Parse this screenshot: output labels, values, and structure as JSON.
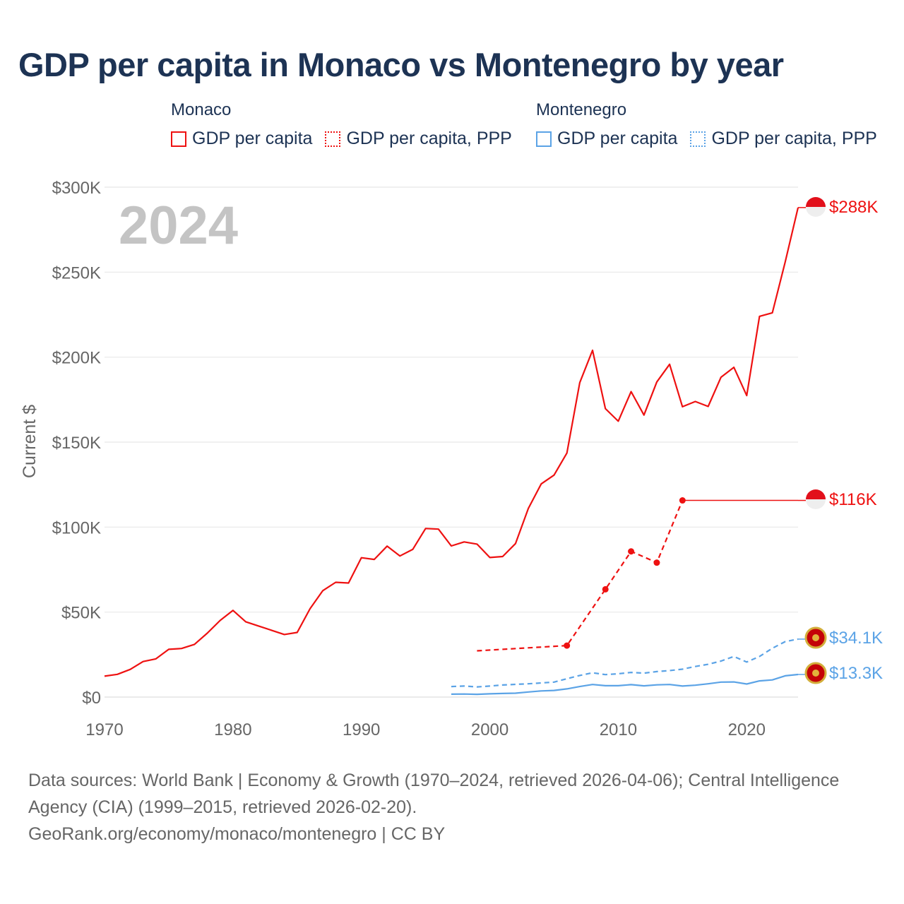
{
  "title": "GDP per capita in Monaco vs Montenegro by year",
  "legend": {
    "groups": [
      {
        "country": "Monaco",
        "color": "#ee1111",
        "items": [
          {
            "label": "GDP per capita",
            "style": "solid"
          },
          {
            "label": "GDP per capita, PPP",
            "style": "dotted"
          }
        ]
      },
      {
        "country": "Montenegro",
        "color": "#5ba3e6",
        "items": [
          {
            "label": "GDP per capita",
            "style": "solid"
          },
          {
            "label": "GDP per capita, PPP",
            "style": "dotted"
          }
        ]
      }
    ]
  },
  "chart_data": {
    "type": "line",
    "title": "GDP per capita in Monaco vs Montenegro by year",
    "xlabel": "",
    "ylabel": "Current $",
    "xlim": [
      1970,
      2024
    ],
    "ylim": [
      0,
      300000
    ],
    "x_ticks": [
      1970,
      1980,
      1990,
      2000,
      2010,
      2020
    ],
    "x_tick_labels": [
      "1970",
      "1980",
      "1990",
      "2000",
      "2010",
      "2020"
    ],
    "y_ticks": [
      0,
      50000,
      100000,
      150000,
      200000,
      250000,
      300000
    ],
    "y_tick_labels": [
      "$0",
      "$50K",
      "$100K",
      "$150K",
      "$200K",
      "$250K",
      "$300K"
    ],
    "grid": true,
    "year_watermark": "2024",
    "series": [
      {
        "name": "Monaco GDP per capita",
        "color": "#ee1111",
        "style": "solid",
        "end_label": "$288K",
        "points": [
          [
            1970,
            12300
          ],
          [
            1971,
            13400
          ],
          [
            1972,
            16300
          ],
          [
            1973,
            20900
          ],
          [
            1974,
            22500
          ],
          [
            1975,
            28100
          ],
          [
            1976,
            28600
          ],
          [
            1977,
            31000
          ],
          [
            1978,
            37600
          ],
          [
            1979,
            45100
          ],
          [
            1980,
            51000
          ],
          [
            1981,
            44300
          ],
          [
            1982,
            41800
          ],
          [
            1983,
            39300
          ],
          [
            1984,
            36800
          ],
          [
            1985,
            38000
          ],
          [
            1986,
            52000
          ],
          [
            1987,
            62600
          ],
          [
            1988,
            67500
          ],
          [
            1989,
            67100
          ],
          [
            1990,
            82000
          ],
          [
            1991,
            81000
          ],
          [
            1992,
            88800
          ],
          [
            1993,
            83000
          ],
          [
            1994,
            86900
          ],
          [
            1995,
            99200
          ],
          [
            1996,
            98800
          ],
          [
            1997,
            88900
          ],
          [
            1998,
            91300
          ],
          [
            1999,
            90000
          ],
          [
            2000,
            82100
          ],
          [
            2001,
            82700
          ],
          [
            2002,
            90300
          ],
          [
            2003,
            111000
          ],
          [
            2004,
            125400
          ],
          [
            2005,
            130600
          ],
          [
            2006,
            143600
          ],
          [
            2007,
            185000
          ],
          [
            2008,
            204000
          ],
          [
            2009,
            169700
          ],
          [
            2010,
            162300
          ],
          [
            2011,
            179700
          ],
          [
            2012,
            165900
          ],
          [
            2013,
            185400
          ],
          [
            2014,
            195800
          ],
          [
            2015,
            170800
          ],
          [
            2016,
            173900
          ],
          [
            2017,
            171000
          ],
          [
            2018,
            188200
          ],
          [
            2019,
            194000
          ],
          [
            2020,
            177400
          ],
          [
            2021,
            224000
          ],
          [
            2022,
            226100
          ],
          [
            2023,
            256000
          ],
          [
            2024,
            288000
          ]
        ]
      },
      {
        "name": "Monaco GDP per capita, PPP",
        "color": "#ee1111",
        "style": "dashed",
        "end_label": "$116K",
        "points": [
          [
            1999,
            27200
          ],
          [
            2006,
            30300
          ],
          [
            2009,
            63400
          ],
          [
            2011,
            85700
          ],
          [
            2013,
            79100
          ],
          [
            2015,
            115700
          ],
          [
            2024,
            115700
          ]
        ],
        "markers": [
          2006,
          2009,
          2011,
          2013,
          2015
        ],
        "carried_from": 2015
      },
      {
        "name": "Montenegro GDP per capita",
        "color": "#5ba3e6",
        "style": "solid",
        "end_label": "$13.3K",
        "points": [
          [
            1997,
            1700
          ],
          [
            1998,
            1800
          ],
          [
            1999,
            1600
          ],
          [
            2000,
            1900
          ],
          [
            2001,
            2100
          ],
          [
            2002,
            2300
          ],
          [
            2003,
            3000
          ],
          [
            2004,
            3600
          ],
          [
            2005,
            3900
          ],
          [
            2006,
            4800
          ],
          [
            2007,
            6200
          ],
          [
            2008,
            7400
          ],
          [
            2009,
            6700
          ],
          [
            2010,
            6700
          ],
          [
            2011,
            7300
          ],
          [
            2012,
            6600
          ],
          [
            2013,
            7200
          ],
          [
            2014,
            7400
          ],
          [
            2015,
            6500
          ],
          [
            2016,
            7000
          ],
          [
            2017,
            7800
          ],
          [
            2018,
            8800
          ],
          [
            2019,
            8900
          ],
          [
            2020,
            7700
          ],
          [
            2021,
            9500
          ],
          [
            2022,
            10100
          ],
          [
            2023,
            12500
          ],
          [
            2024,
            13300
          ]
        ]
      },
      {
        "name": "Montenegro GDP per capita, PPP",
        "color": "#5ba3e6",
        "style": "dashed",
        "end_label": "$34.1K",
        "points": [
          [
            1997,
            6200
          ],
          [
            1998,
            6500
          ],
          [
            1999,
            6000
          ],
          [
            2000,
            6500
          ],
          [
            2001,
            7100
          ],
          [
            2002,
            7500
          ],
          [
            2003,
            7800
          ],
          [
            2004,
            8300
          ],
          [
            2005,
            8800
          ],
          [
            2006,
            10800
          ],
          [
            2007,
            12700
          ],
          [
            2008,
            14300
          ],
          [
            2009,
            13200
          ],
          [
            2010,
            13700
          ],
          [
            2011,
            14500
          ],
          [
            2012,
            14100
          ],
          [
            2013,
            15000
          ],
          [
            2014,
            15600
          ],
          [
            2015,
            16400
          ],
          [
            2016,
            18000
          ],
          [
            2017,
            19300
          ],
          [
            2018,
            21200
          ],
          [
            2019,
            23900
          ],
          [
            2020,
            20600
          ],
          [
            2021,
            23900
          ],
          [
            2022,
            28700
          ],
          [
            2023,
            32600
          ],
          [
            2024,
            34100
          ]
        ]
      }
    ]
  },
  "footer": {
    "sources": "Data sources: World Bank | Economy & Growth (1970–2024, retrieved 2026-04-06); Central Intelligence Agency (CIA) (1999–2015, retrieved 2026-02-20).",
    "credit": "GeoRank.org/economy/monaco/montenegro | CC BY"
  }
}
